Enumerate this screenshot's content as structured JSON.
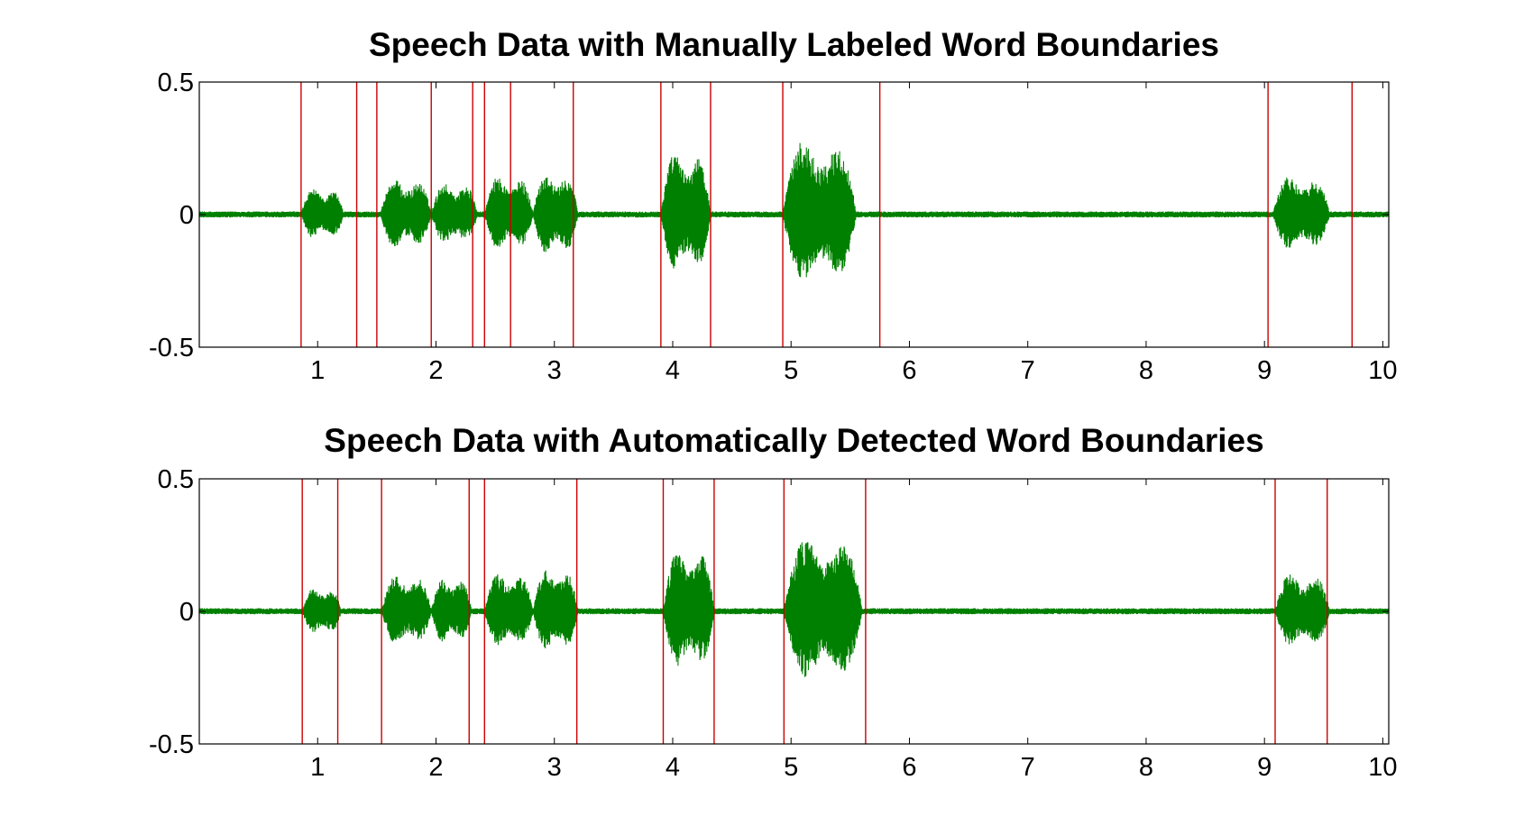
{
  "chart_data": [
    {
      "type": "line",
      "title": "Speech Data with Manually Labeled Word Boundaries",
      "xlabel": "",
      "ylabel": "",
      "xlim": [
        0,
        10.05
      ],
      "ylim": [
        -0.5,
        0.5
      ],
      "xticks": [
        1,
        2,
        3,
        4,
        5,
        6,
        7,
        8,
        9,
        10
      ],
      "xtick_labels": [
        "1",
        "2",
        "3",
        "4",
        "5",
        "6",
        "7",
        "8",
        "9",
        "10"
      ],
      "yticks": [
        -0.5,
        0,
        0.5
      ],
      "ytick_labels": [
        "-0.5",
        "0",
        "0.5"
      ],
      "grid": false,
      "series_color": "#008000",
      "boundary_color": "#cc0000",
      "boundaries": [
        0.86,
        1.33,
        1.5,
        1.96,
        2.31,
        2.41,
        2.63,
        3.16,
        3.9,
        4.32,
        4.93,
        5.75,
        9.03,
        9.74
      ],
      "envelope_segments": [
        {
          "start": 0.86,
          "end": 1.22,
          "peak": 0.13
        },
        {
          "start": 1.53,
          "end": 1.96,
          "peak": 0.18
        },
        {
          "start": 1.96,
          "end": 2.35,
          "peak": 0.16
        },
        {
          "start": 2.41,
          "end": 2.82,
          "peak": 0.19
        },
        {
          "start": 2.82,
          "end": 3.2,
          "peak": 0.21
        },
        {
          "start": 3.9,
          "end": 4.32,
          "peak": 0.31
        },
        {
          "start": 4.93,
          "end": 5.55,
          "peak": 0.37
        },
        {
          "start": 9.07,
          "end": 9.55,
          "peak": 0.19
        }
      ],
      "noise_level": 0.012
    },
    {
      "type": "line",
      "title": "Speech Data with Automatically Detected Word Boundaries",
      "xlabel": "",
      "ylabel": "",
      "xlim": [
        0,
        10.05
      ],
      "ylim": [
        -0.5,
        0.5
      ],
      "xticks": [
        1,
        2,
        3,
        4,
        5,
        6,
        7,
        8,
        9,
        10
      ],
      "xtick_labels": [
        "1",
        "2",
        "3",
        "4",
        "5",
        "6",
        "7",
        "8",
        "9",
        "10"
      ],
      "yticks": [
        -0.5,
        0,
        0.5
      ],
      "ytick_labels": [
        "-0.5",
        "0",
        "0.5"
      ],
      "grid": false,
      "series_color": "#008000",
      "boundary_color": "#cc0000",
      "boundaries": [
        0.87,
        1.17,
        1.54,
        2.28,
        2.41,
        3.19,
        3.92,
        4.35,
        4.94,
        5.63,
        9.09,
        9.53
      ],
      "envelope_segments": [
        {
          "start": 0.87,
          "end": 1.2,
          "peak": 0.12
        },
        {
          "start": 1.54,
          "end": 1.96,
          "peak": 0.18
        },
        {
          "start": 1.96,
          "end": 2.3,
          "peak": 0.17
        },
        {
          "start": 2.41,
          "end": 2.82,
          "peak": 0.19
        },
        {
          "start": 2.82,
          "end": 3.2,
          "peak": 0.21
        },
        {
          "start": 3.92,
          "end": 4.35,
          "peak": 0.31
        },
        {
          "start": 4.94,
          "end": 5.6,
          "peak": 0.37
        },
        {
          "start": 9.09,
          "end": 9.55,
          "peak": 0.19
        }
      ],
      "noise_level": 0.012
    }
  ]
}
